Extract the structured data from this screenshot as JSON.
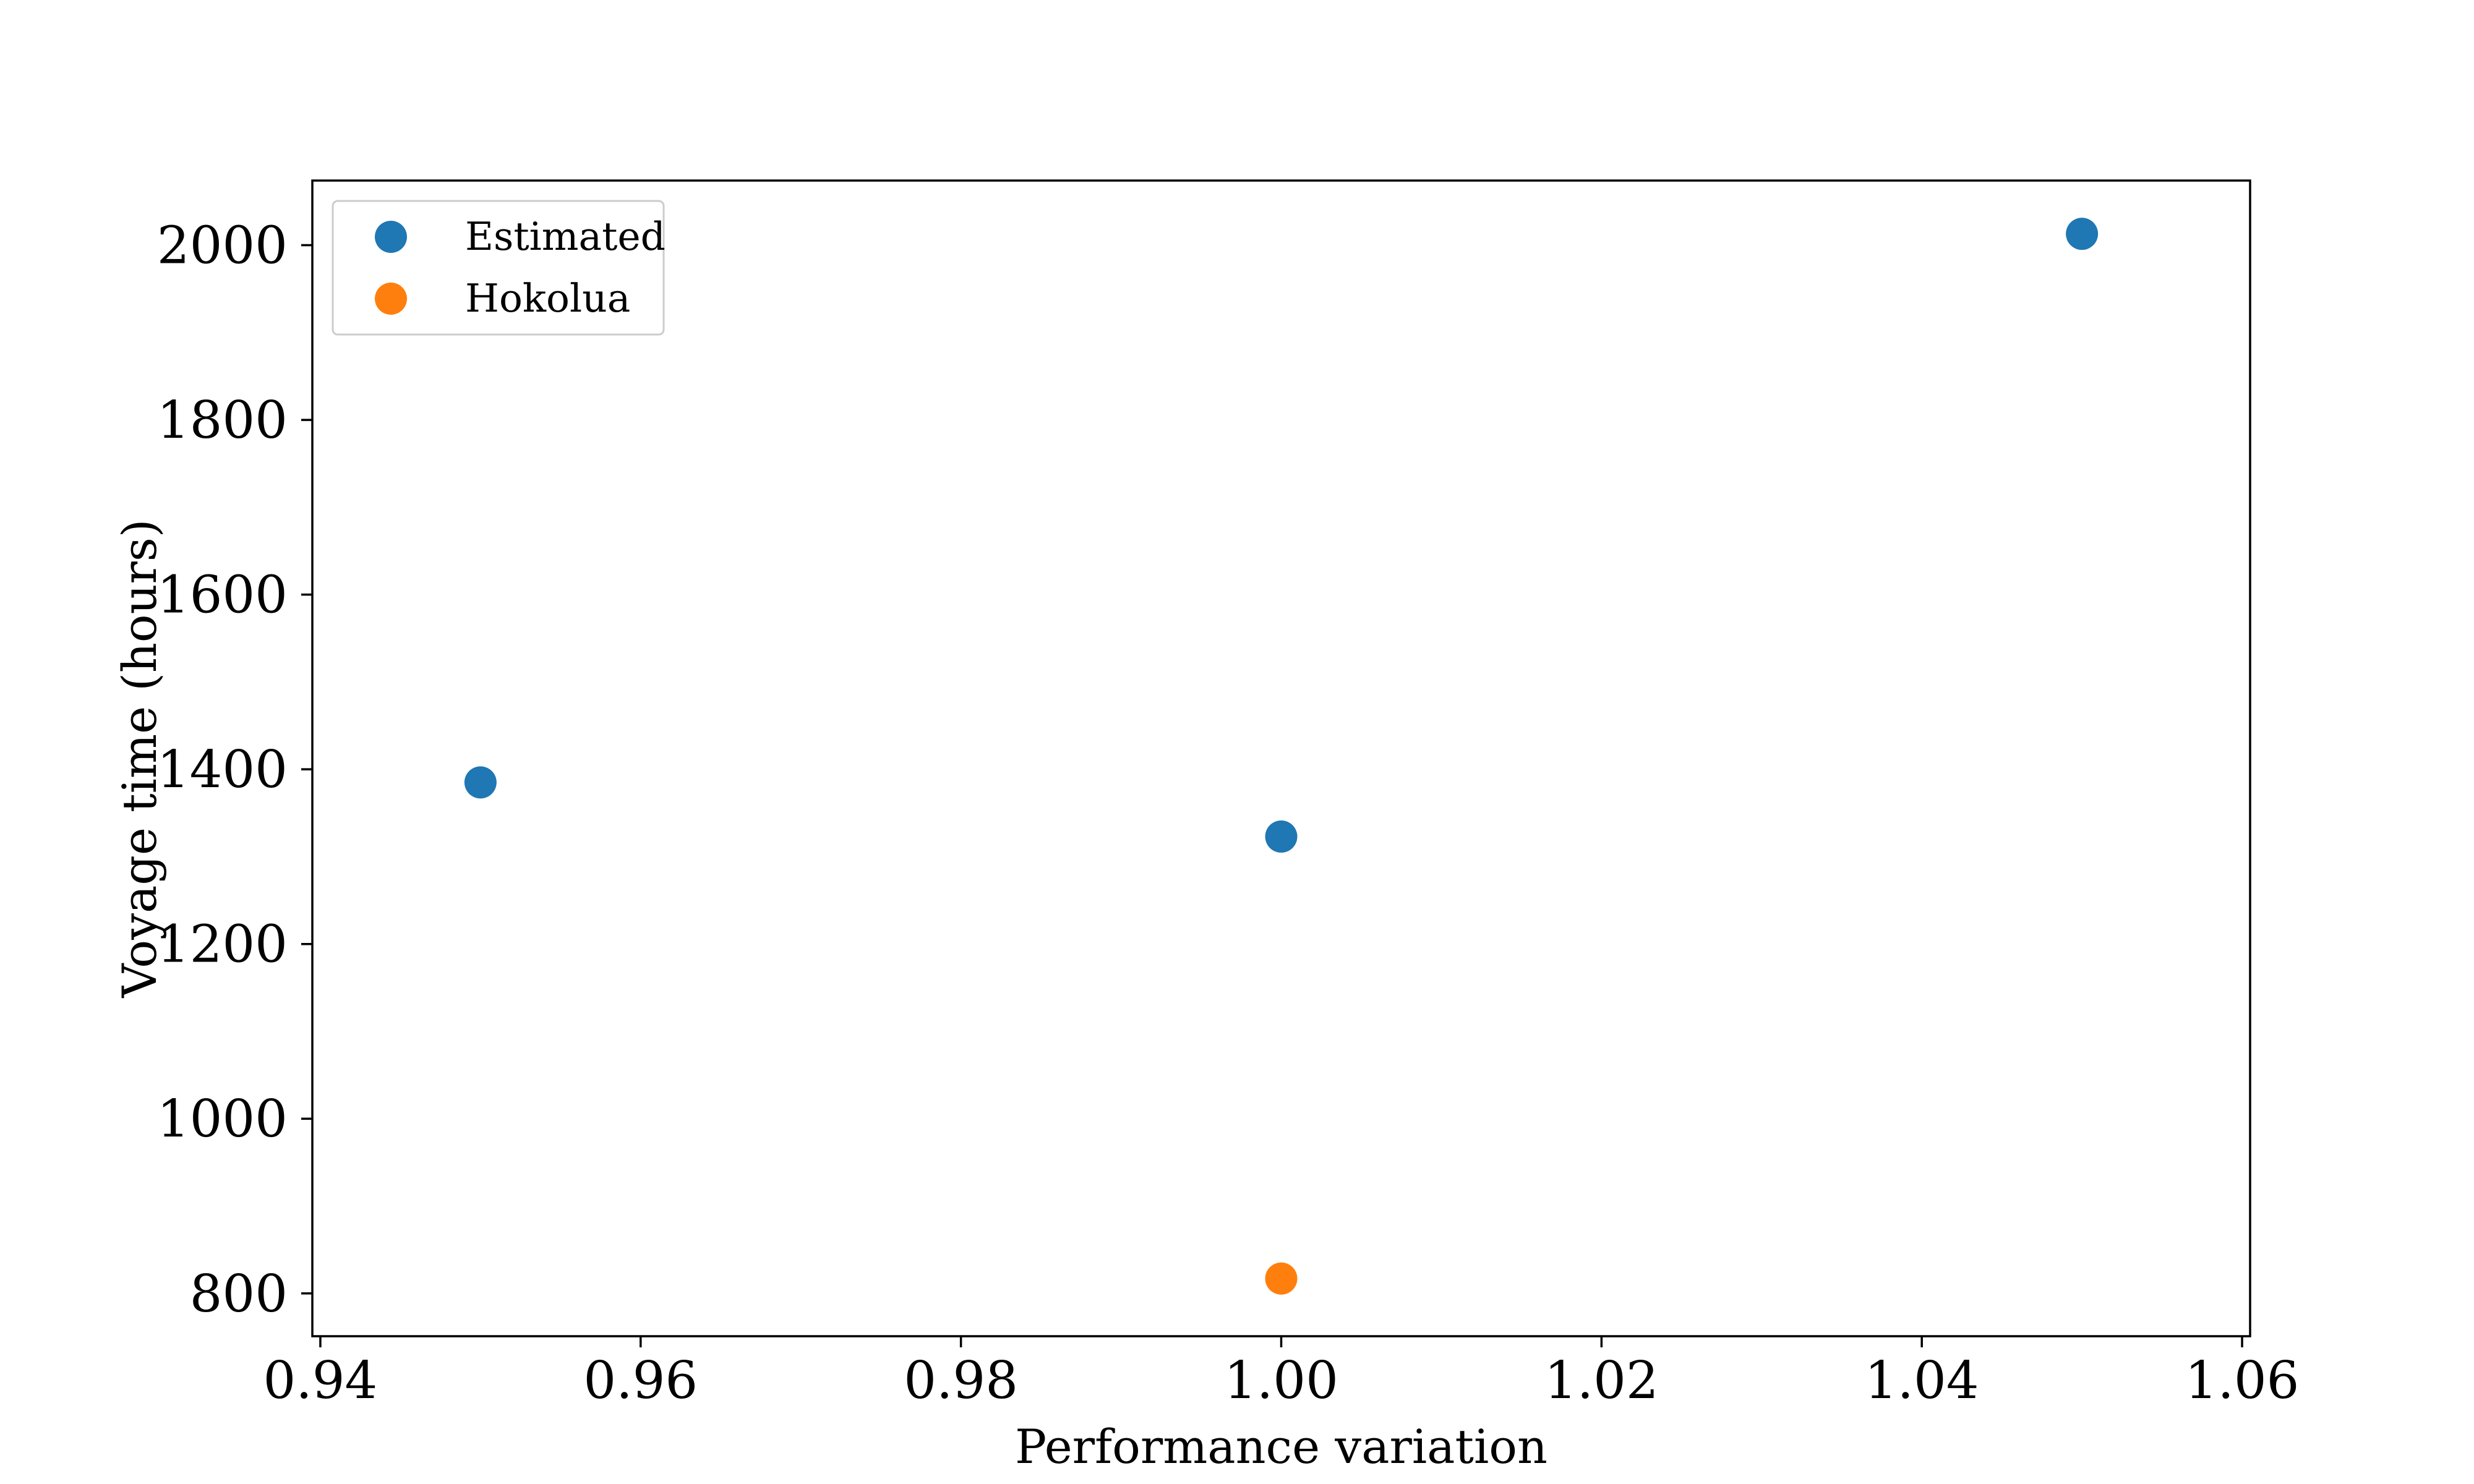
{
  "chart_data": {
    "type": "scatter",
    "title": "",
    "xlabel": "Performance variation",
    "ylabel": "Voyage time (hours)",
    "xlim": [
      0.9395,
      1.0605
    ],
    "ylim": [
      751,
      2074
    ],
    "x_ticks": [
      0.94,
      0.96,
      0.98,
      1.0,
      1.02,
      1.04,
      1.06
    ],
    "x_tick_labels": [
      "0.94",
      "0.96",
      "0.98",
      "1.00",
      "1.02",
      "1.04",
      "1.06"
    ],
    "y_ticks": [
      800,
      1000,
      1200,
      1400,
      1600,
      1800,
      2000
    ],
    "y_tick_labels": [
      "800",
      "1000",
      "1200",
      "1400",
      "1600",
      "1800",
      "2000"
    ],
    "grid": false,
    "legend_position": "upper-left",
    "series": [
      {
        "name": "Estimated",
        "color": "#1f77b4",
        "points": [
          {
            "x": 0.95,
            "y": 1385
          },
          {
            "x": 1.0,
            "y": 1323
          },
          {
            "x": 1.05,
            "y": 2013
          }
        ]
      },
      {
        "name": "Hokolua",
        "color": "#ff7f0e",
        "points": [
          {
            "x": 1.0,
            "y": 817
          }
        ]
      }
    ]
  }
}
